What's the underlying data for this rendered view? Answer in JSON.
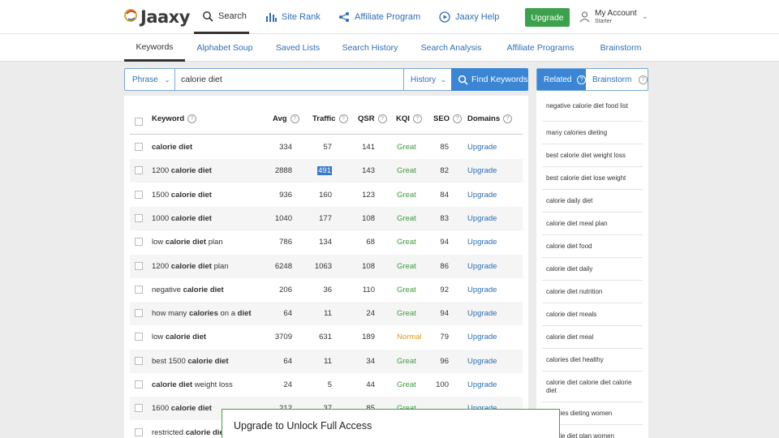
{
  "header": {
    "logo_text": "Jaaxy",
    "nav": [
      {
        "label": "Search",
        "icon": "search-icon"
      },
      {
        "label": "Site Rank",
        "icon": "bar-chart-icon"
      },
      {
        "label": "Affiliate Program",
        "icon": "share-icon"
      },
      {
        "label": "Jaaxy Help",
        "icon": "play-icon"
      }
    ],
    "upgrade_label": "Upgrade",
    "account": {
      "title": "My Account",
      "subtitle": "Starter"
    }
  },
  "tabs": [
    "Keywords",
    "Alphabet Soup",
    "Saved Lists",
    "Search History",
    "Search Analysis",
    "Affiliate Programs",
    "Brainstorm"
  ],
  "search": {
    "mode": "Phrase",
    "query": "calorie diet",
    "history_label": "History",
    "find_label": "Find Keywords"
  },
  "table": {
    "columns": [
      "Keyword",
      "Avg",
      "Traffic",
      "QSR",
      "KQI",
      "SEO",
      "Domains"
    ],
    "rows": [
      {
        "kw_pre": "",
        "kw_bold": "calorie diet",
        "kw_post": "",
        "avg": "334",
        "traffic": "57",
        "qsr": "141",
        "kqi": "Great",
        "seo": "85",
        "domains": "Upgrade"
      },
      {
        "kw_pre": "1200 ",
        "kw_bold": "calorie diet",
        "kw_post": "",
        "avg": "2888",
        "traffic": "491",
        "qsr": "143",
        "kqi": "Great",
        "seo": "82",
        "domains": "Upgrade"
      },
      {
        "kw_pre": "1500 ",
        "kw_bold": "calorie diet",
        "kw_post": "",
        "avg": "936",
        "traffic": "160",
        "qsr": "123",
        "kqi": "Great",
        "seo": "84",
        "domains": "Upgrade"
      },
      {
        "kw_pre": "1000 ",
        "kw_bold": "calorie diet",
        "kw_post": "",
        "avg": "1040",
        "traffic": "177",
        "qsr": "108",
        "kqi": "Great",
        "seo": "83",
        "domains": "Upgrade"
      },
      {
        "kw_pre": "low ",
        "kw_bold": "calorie diet",
        "kw_post": " plan",
        "avg": "786",
        "traffic": "134",
        "qsr": "68",
        "kqi": "Great",
        "seo": "94",
        "domains": "Upgrade"
      },
      {
        "kw_pre": "1200 ",
        "kw_bold": "calorie diet",
        "kw_post": " plan",
        "avg": "6248",
        "traffic": "1063",
        "qsr": "108",
        "kqi": "Great",
        "seo": "86",
        "domains": "Upgrade"
      },
      {
        "kw_pre": "negative ",
        "kw_bold": "calorie diet",
        "kw_post": "",
        "avg": "206",
        "traffic": "36",
        "qsr": "110",
        "kqi": "Great",
        "seo": "92",
        "domains": "Upgrade"
      },
      {
        "kw_pre": "how many ",
        "kw_bold": "calories",
        "kw_post": " on a ",
        "kw_bold2": "diet",
        "avg": "64",
        "traffic": "11",
        "qsr": "24",
        "kqi": "Great",
        "seo": "94",
        "domains": "Upgrade"
      },
      {
        "kw_pre": "low ",
        "kw_bold": "calorie diet",
        "kw_post": "",
        "avg": "3709",
        "traffic": "631",
        "qsr": "189",
        "kqi": "Normal",
        "seo": "79",
        "domains": "Upgrade"
      },
      {
        "kw_pre": "best 1500 ",
        "kw_bold": "calorie diet",
        "kw_post": "",
        "avg": "64",
        "traffic": "11",
        "qsr": "34",
        "kqi": "Great",
        "seo": "96",
        "domains": "Upgrade"
      },
      {
        "kw_pre": "",
        "kw_bold": "calorie diet",
        "kw_post": " weight loss",
        "avg": "24",
        "traffic": "5",
        "qsr": "44",
        "kqi": "Great",
        "seo": "100",
        "domains": "Upgrade"
      },
      {
        "kw_pre": "1600 ",
        "kw_bold": "calorie diet",
        "kw_post": "",
        "avg": "212",
        "traffic": "37",
        "qsr": "85",
        "kqi": "Great",
        "seo": "",
        "domains": "Upgrade"
      },
      {
        "kw_pre": "restricted ",
        "kw_bold": "calorie diet",
        "kw_post": "",
        "avg": "",
        "traffic": "",
        "qsr": "",
        "kqi": "",
        "seo": "",
        "domains": ""
      }
    ]
  },
  "side": {
    "tab_related": "Related",
    "tab_brainstorm": "Brainstorm",
    "items": [
      "negative calorie diet food list",
      "many calories dieting",
      "best calorie diet weight loss",
      "best calorie diet lose weight",
      "calorie daily diet",
      "calorie diet meal plan",
      "calorie diet food",
      "calorie diet daily",
      "calorie diet nutrition",
      "calorie diet meals",
      "calorie diet meal",
      "calories diet healthy",
      "calorie diet calorie diet calorie diet",
      "calories dieting women",
      "calorie diet plan women"
    ]
  },
  "modal": {
    "title": "Upgrade to Unlock Full Access"
  },
  "colors": {
    "accent_blue": "#3a86d4",
    "link_blue": "#2d6fb5",
    "upgrade_green": "#3ba14c",
    "great_green": "#3e9a3e",
    "normal_orange": "#e09a1a"
  }
}
